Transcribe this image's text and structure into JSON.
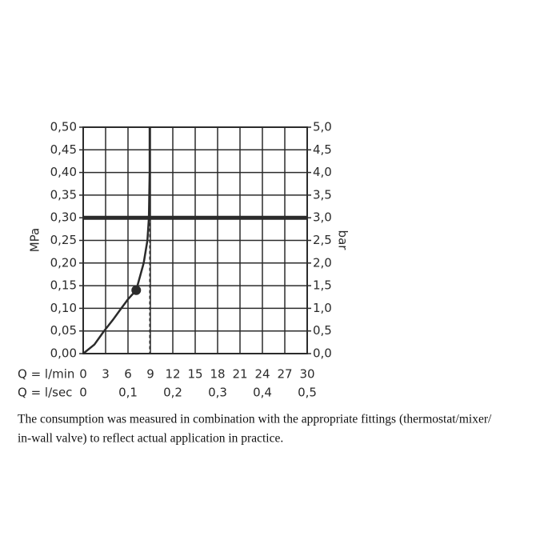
{
  "chart_data": {
    "type": "line",
    "x_label": "Q = l/min",
    "x2_label": "Q = l/sec",
    "y_label": "MPa",
    "y2_label": "bar",
    "xlim": [
      0,
      30
    ],
    "xticks": [
      0,
      3,
      6,
      9,
      12,
      15,
      18,
      21,
      24,
      27,
      30
    ],
    "x2lim": [
      0,
      0.5
    ],
    "x2ticks": [
      0,
      {
        "value": 0.1,
        "label": "0,1"
      },
      {
        "value": 0.2,
        "label": "0,2"
      },
      {
        "value": 0.3,
        "label": "0,3"
      },
      {
        "value": 0.4,
        "label": "0,4"
      },
      {
        "value": 0.5,
        "label": "0,5"
      }
    ],
    "ylim": [
      0,
      0.5
    ],
    "yticks": [
      {
        "value": 0,
        "label": "0,00"
      },
      {
        "value": 0.05,
        "label": "0,05"
      },
      {
        "value": 0.1,
        "label": "0,10"
      },
      {
        "value": 0.15,
        "label": "0,15"
      },
      {
        "value": 0.2,
        "label": "0,20"
      },
      {
        "value": 0.25,
        "label": "0,25"
      },
      {
        "value": 0.3,
        "label": "0,30"
      },
      {
        "value": 0.35,
        "label": "0,35"
      },
      {
        "value": 0.4,
        "label": "0,40"
      },
      {
        "value": 0.45,
        "label": "0,45"
      },
      {
        "value": 0.5,
        "label": "0,50"
      }
    ],
    "y2lim": [
      0,
      5
    ],
    "y2ticks": [
      {
        "value": 0,
        "label": "0,0"
      },
      {
        "value": 0.5,
        "label": "0,5"
      },
      {
        "value": 1,
        "label": "1,0"
      },
      {
        "value": 1.5,
        "label": "1,5"
      },
      {
        "value": 2,
        "label": "2,0"
      },
      {
        "value": 2.5,
        "label": "2,5"
      },
      {
        "value": 3,
        "label": "3,0"
      },
      {
        "value": 3.5,
        "label": "3,5"
      },
      {
        "value": 4,
        "label": "4,0"
      },
      {
        "value": 4.5,
        "label": "4,5"
      },
      {
        "value": 5,
        "label": "5,0"
      }
    ],
    "grid": true,
    "series": [
      {
        "color": "#2b2b2b",
        "x": [
          0,
          1.5,
          2.8,
          4,
          5.1,
          6,
          7.1,
          8.1,
          8.6,
          8.8,
          8.9,
          8.9
        ],
        "values": [
          0,
          0.02,
          0.05,
          0.075,
          0.1,
          0.12,
          0.14,
          0.2,
          0.25,
          0.3,
          0.4,
          0.5
        ]
      }
    ],
    "marker": {
      "x": 7.1,
      "y": 0.14
    },
    "hline": 0.3,
    "vline": 8.9
  },
  "caption": [
    "The consumption was measured in combination with the appropriate fittings (thermostat/mixer/",
    "in-wall valve) to reflect actual application in practice."
  ]
}
